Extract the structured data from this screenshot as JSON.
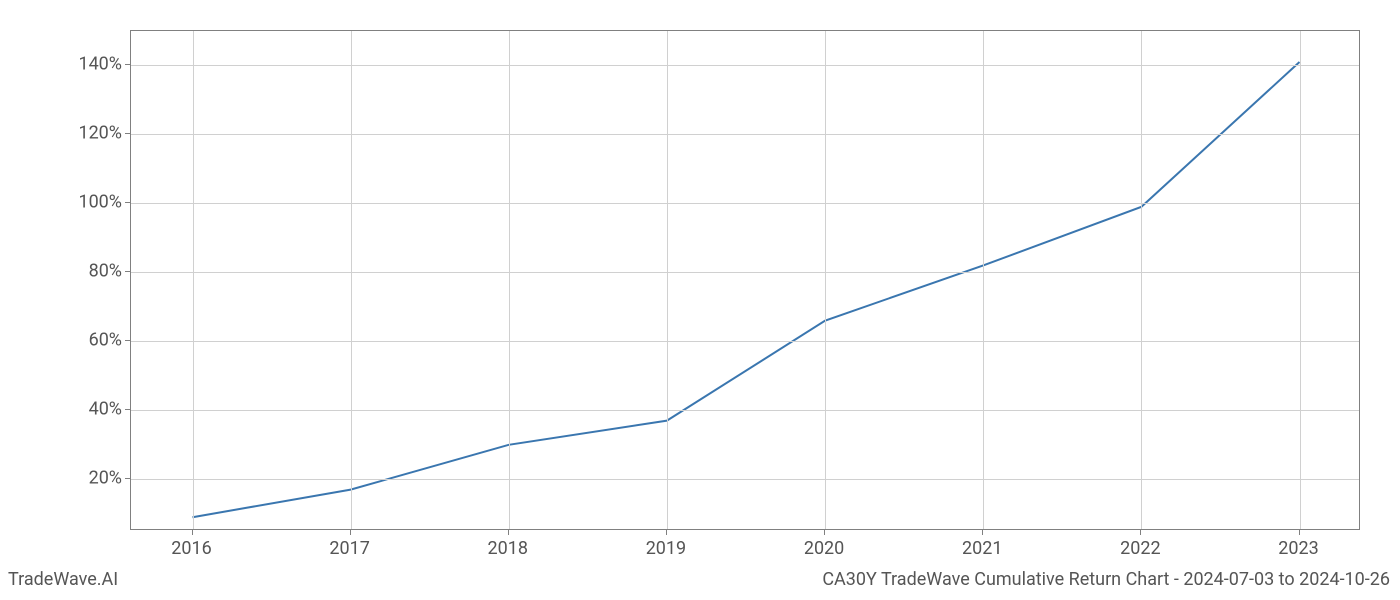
{
  "chart": {
    "type": "line",
    "x_categories": [
      "2016",
      "2017",
      "2018",
      "2019",
      "2020",
      "2021",
      "2022",
      "2023"
    ],
    "y_values": [
      9,
      17,
      30,
      37,
      66,
      82,
      99,
      141
    ],
    "line_color": "#3a76af",
    "line_width": 2,
    "ylim": [
      5,
      150
    ],
    "xlim_padding": 0.05,
    "y_ticks": [
      20,
      40,
      60,
      80,
      100,
      120,
      140
    ],
    "y_tick_labels": [
      "20%",
      "40%",
      "60%",
      "80%",
      "100%",
      "120%",
      "140%"
    ],
    "background_color": "#ffffff",
    "grid_color": "#d0d0d0",
    "axis_color": "#808080",
    "tick_label_color": "#555555",
    "tick_label_fontsize": 18
  },
  "footer": {
    "left": "TradeWave.AI",
    "right": "CA30Y TradeWave Cumulative Return Chart - 2024-07-03 to 2024-10-26"
  }
}
